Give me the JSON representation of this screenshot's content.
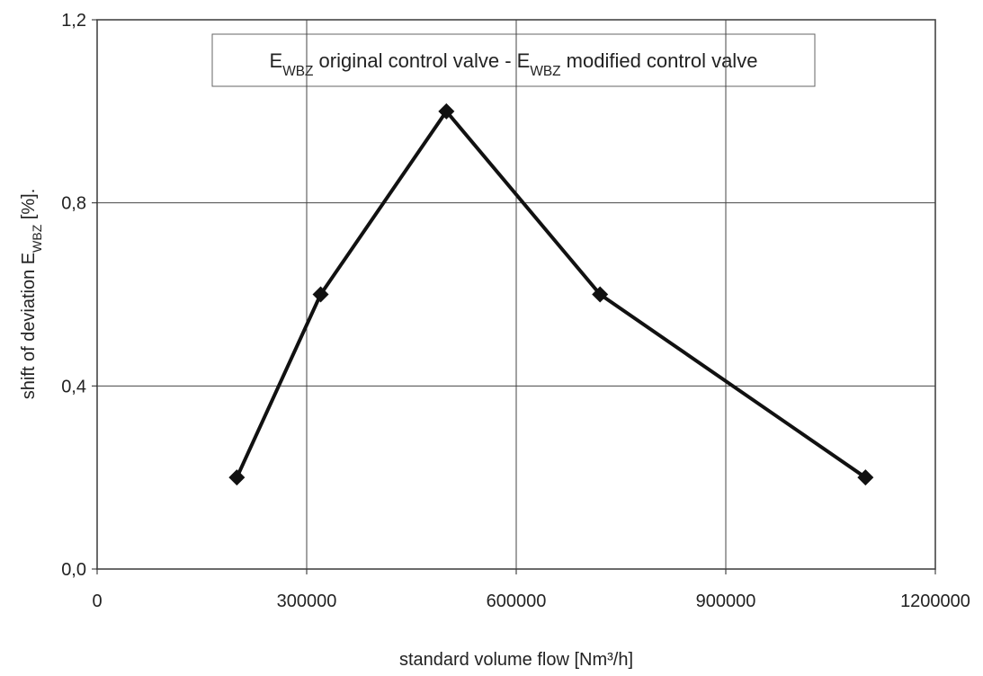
{
  "chart_data": {
    "type": "line",
    "annotation": [
      {
        "text": "E"
      },
      {
        "text": "WBZ",
        "sub": true
      },
      {
        "text": " original control valve  -  "
      },
      {
        "text": "E"
      },
      {
        "text": "WBZ",
        "sub": true
      },
      {
        "text": " modified control valve"
      }
    ],
    "x_label": "standard volume flow [Nm³/h]",
    "y_label": [
      {
        "text": "shift of deviation E"
      },
      {
        "text": "WBZ",
        "sub": true
      },
      {
        "text": " [%]."
      }
    ],
    "x": [
      200000,
      320000,
      500000,
      720000,
      1100000
    ],
    "values": [
      0.2,
      0.6,
      1.0,
      0.6,
      0.2
    ],
    "color": "#111111",
    "marker": "diamond",
    "xlim": [
      0,
      1200000
    ],
    "xticks": [
      0,
      300000,
      600000,
      900000,
      1200000
    ],
    "ylim": [
      0,
      1.2
    ],
    "yticks": [
      {
        "value": 0,
        "label": "0,0"
      },
      {
        "value": 0.4,
        "label": "0,4"
      },
      {
        "value": 0.8,
        "label": "0,8"
      },
      {
        "value": 1.2,
        "label": "1,2"
      }
    ],
    "grid": true
  }
}
